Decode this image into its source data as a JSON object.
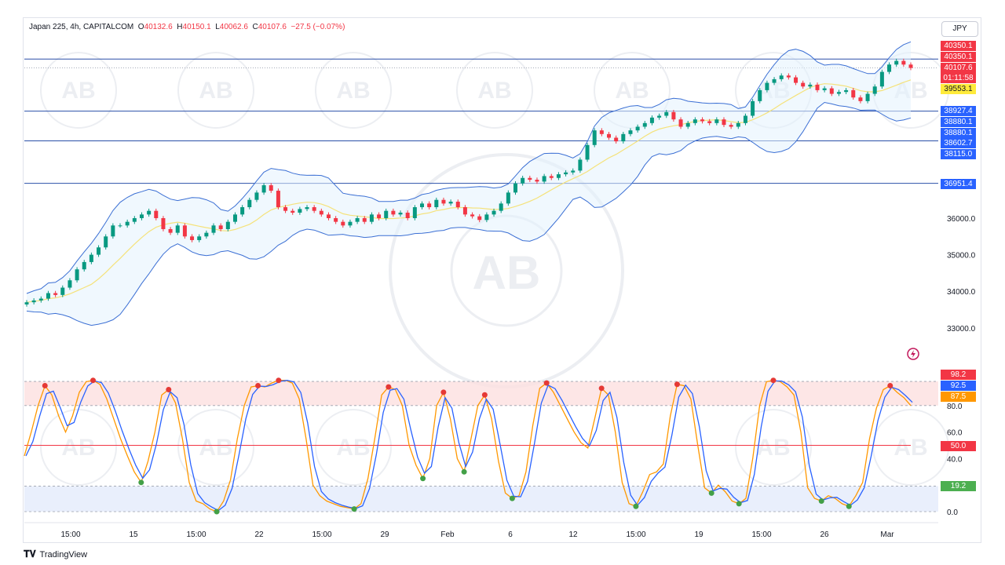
{
  "header": {
    "symbol": "Japan 225, 4h, CAPITALCOM",
    "open_label": "O",
    "open": "40132.6",
    "high_label": "H",
    "high": "40150.1",
    "low_label": "L",
    "low": "40062.6",
    "close_label": "C",
    "close": "40107.6",
    "change": "−27.5 (−0.07%)"
  },
  "currency": "JPY",
  "footer": {
    "brand": "TradingView"
  },
  "watermark_text": "AB",
  "price_tags": [
    {
      "label": "40350.1",
      "color": "#f23645"
    },
    {
      "label": "40350.1",
      "color": "#f23645"
    },
    {
      "label": "40107.6",
      "color": "#f23645"
    },
    {
      "label": "01:11:58",
      "color": "#f23645"
    },
    {
      "label": "39553.1",
      "color": "#ffeb3b",
      "text_color": "#131722"
    },
    {
      "label": "38927.4",
      "color": "#2962ff"
    },
    {
      "label": "38880.1",
      "color": "#2962ff"
    },
    {
      "label": "38880.1",
      "color": "#2962ff"
    },
    {
      "label": "38602.7",
      "color": "#2962ff"
    },
    {
      "label": "38115.0",
      "color": "#2962ff"
    },
    {
      "label": "36951.4",
      "color": "#2962ff"
    }
  ],
  "stoch_tags": [
    {
      "label": "98.2",
      "color": "#f23645"
    },
    {
      "label": "92.5",
      "color": "#2962ff"
    },
    {
      "label": "87.5",
      "color": "#ff9800"
    },
    {
      "label": "50.0",
      "color": "#f23645"
    },
    {
      "label": "19.2",
      "color": "#4caf50"
    }
  ],
  "chart_data": [
    {
      "type": "candlestick",
      "title": "Japan 225, 4h, CAPITALCOM",
      "y_axis_ticks": [
        33000,
        34000,
        35000,
        36000
      ],
      "y_axis_labels": [
        "33000.0",
        "34000.0",
        "35000.0",
        "36000.0"
      ],
      "ylim": [
        32600,
        40700
      ],
      "x_tick_labels": [
        "15:00",
        "15",
        "15:00",
        "22",
        "15:00",
        "29",
        "Feb",
        "6",
        "12",
        "15:00",
        "19",
        "15:00",
        "26",
        "Mar"
      ],
      "horizontal_lines": [
        40350.1,
        38927.4,
        38115.0,
        36951.4
      ],
      "last_price": 40107.6,
      "close_path": [
        33700,
        33750,
        33800,
        33950,
        33900,
        34100,
        34300,
        34600,
        34800,
        35000,
        35200,
        35500,
        35800,
        35800,
        35900,
        36000,
        36100,
        36200,
        36000,
        35700,
        35600,
        35800,
        35500,
        35400,
        35500,
        35600,
        35800,
        35700,
        35900,
        36100,
        36300,
        36500,
        36700,
        36900,
        36750,
        36300,
        36200,
        36150,
        36250,
        36300,
        36200,
        36100,
        36000,
        35900,
        35800,
        35900,
        36000,
        35900,
        36100,
        36000,
        36200,
        36100,
        36150,
        36000,
        36300,
        36400,
        36300,
        36500,
        36400,
        36450,
        36300,
        36100,
        36050,
        35950,
        36100,
        36200,
        36400,
        36700,
        36950,
        37100,
        37050,
        37000,
        37150,
        37100,
        37200,
        37250,
        37300,
        37600,
        38000,
        38400,
        38300,
        38200,
        38100,
        38300,
        38400,
        38500,
        38600,
        38750,
        38800,
        38900,
        38700,
        38500,
        38600,
        38700,
        38650,
        38600,
        38700,
        38550,
        38500,
        38600,
        38800,
        39200,
        39500,
        39700,
        39800,
        39900,
        39850,
        39700,
        39600,
        39650,
        39500,
        39550,
        39400,
        39450,
        39500,
        39300,
        39200,
        39400,
        39600,
        40000,
        40200,
        40300,
        40200,
        40107.6
      ]
    },
    {
      "type": "line",
      "title": "",
      "y_axis_ticks": [
        0,
        40,
        60,
        80
      ],
      "y_axis_labels": [
        "0.0",
        "40.0",
        "60.0",
        "80.0"
      ],
      "ylim": [
        -3,
        106
      ],
      "levels": [
        19.2,
        50.0,
        80,
        98.2
      ],
      "series": [
        {
          "values": [
            42,
            60,
            80,
            95,
            88,
            72,
            60,
            72,
            90,
            98,
            99,
            96,
            85,
            70,
            55,
            42,
            30,
            22,
            38,
            60,
            88,
            92,
            82,
            55,
            22,
            8,
            6,
            2,
            0,
            8,
            24,
            55,
            80,
            94,
            95,
            94,
            97,
            99,
            99,
            97,
            85,
            55,
            20,
            12,
            8,
            6,
            4,
            3,
            2,
            6,
            25,
            55,
            88,
            94,
            92,
            80,
            50,
            35,
            25,
            40,
            80,
            90,
            70,
            40,
            30,
            55,
            80,
            88,
            70,
            38,
            14,
            10,
            12,
            30,
            65,
            93,
            97,
            90,
            80,
            70,
            60,
            52,
            48,
            70,
            93,
            88,
            60,
            22,
            6,
            4,
            15,
            28,
            30,
            36,
            72,
            96,
            95,
            85,
            50,
            18,
            14,
            20,
            15,
            8,
            6,
            10,
            40,
            80,
            98,
            99,
            98,
            94,
            88,
            60,
            18,
            10,
            8,
            12,
            10,
            6,
            4,
            12,
            22,
            55,
            78,
            92,
            95,
            90,
            86,
            80
          ]
        }
      ]
    }
  ]
}
